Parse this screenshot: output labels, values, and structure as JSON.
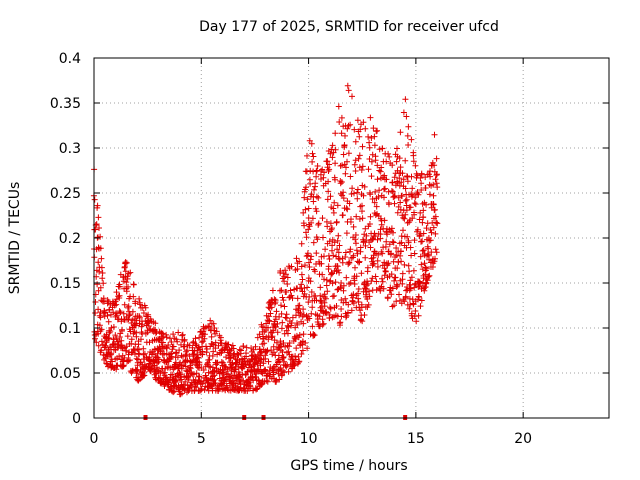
{
  "chart_data": {
    "type": "scatter",
    "title": "Day 177 of 2025, SRMTID for receiver ufcd",
    "xlabel": "GPS time / hours",
    "ylabel": "SRMTID / TECUs",
    "xlim": [
      0,
      24
    ],
    "ylim": [
      0,
      0.4
    ],
    "x_ticks": [
      0,
      5,
      10,
      15,
      20
    ],
    "y_ticks": [
      0,
      0.05,
      0.1,
      0.15,
      0.2,
      0.25,
      0.3,
      0.35,
      0.4
    ],
    "x_tick_labels": [
      "0",
      "5",
      "10",
      "15",
      "20"
    ],
    "y_tick_labels": [
      "0",
      "0.05",
      "0.1",
      "0.15",
      "0.2",
      "0.25",
      "0.3",
      "0.35",
      "0.4"
    ],
    "grid": true,
    "marker": "+",
    "color": "#e00000",
    "x_axis_markers": [
      2.4,
      7.0,
      7.9,
      14.5
    ],
    "envelope": [
      {
        "t": 0.0,
        "lo": 0.09,
        "hi": 0.3
      },
      {
        "t": 0.5,
        "lo": 0.06,
        "hi": 0.13
      },
      {
        "t": 1.0,
        "lo": 0.05,
        "hi": 0.14
      },
      {
        "t": 1.5,
        "lo": 0.06,
        "hi": 0.18
      },
      {
        "t": 2.0,
        "lo": 0.04,
        "hi": 0.14
      },
      {
        "t": 2.5,
        "lo": 0.05,
        "hi": 0.12
      },
      {
        "t": 3.0,
        "lo": 0.04,
        "hi": 0.1
      },
      {
        "t": 3.5,
        "lo": 0.03,
        "hi": 0.09
      },
      {
        "t": 4.0,
        "lo": 0.025,
        "hi": 0.1
      },
      {
        "t": 4.5,
        "lo": 0.03,
        "hi": 0.08
      },
      {
        "t": 5.0,
        "lo": 0.03,
        "hi": 0.1
      },
      {
        "t": 5.5,
        "lo": 0.03,
        "hi": 0.11
      },
      {
        "t": 6.0,
        "lo": 0.03,
        "hi": 0.09
      },
      {
        "t": 6.5,
        "lo": 0.03,
        "hi": 0.08
      },
      {
        "t": 7.0,
        "lo": 0.03,
        "hi": 0.08
      },
      {
        "t": 7.5,
        "lo": 0.03,
        "hi": 0.08
      },
      {
        "t": 8.0,
        "lo": 0.04,
        "hi": 0.12
      },
      {
        "t": 8.5,
        "lo": 0.04,
        "hi": 0.16
      },
      {
        "t": 9.0,
        "lo": 0.05,
        "hi": 0.17
      },
      {
        "t": 9.5,
        "lo": 0.06,
        "hi": 0.18
      },
      {
        "t": 10.0,
        "lo": 0.08,
        "hi": 0.32
      },
      {
        "t": 10.5,
        "lo": 0.1,
        "hi": 0.28
      },
      {
        "t": 11.0,
        "lo": 0.11,
        "hi": 0.3
      },
      {
        "t": 11.5,
        "lo": 0.1,
        "hi": 0.36
      },
      {
        "t": 12.0,
        "lo": 0.12,
        "hi": 0.38
      },
      {
        "t": 12.5,
        "lo": 0.1,
        "hi": 0.33
      },
      {
        "t": 13.0,
        "lo": 0.14,
        "hi": 0.35
      },
      {
        "t": 13.5,
        "lo": 0.14,
        "hi": 0.3
      },
      {
        "t": 14.0,
        "lo": 0.12,
        "hi": 0.29
      },
      {
        "t": 14.5,
        "lo": 0.13,
        "hi": 0.36
      },
      {
        "t": 15.0,
        "lo": 0.1,
        "hi": 0.28
      },
      {
        "t": 15.5,
        "lo": 0.15,
        "hi": 0.27
      },
      {
        "t": 16.0,
        "lo": 0.18,
        "hi": 0.33
      }
    ]
  }
}
